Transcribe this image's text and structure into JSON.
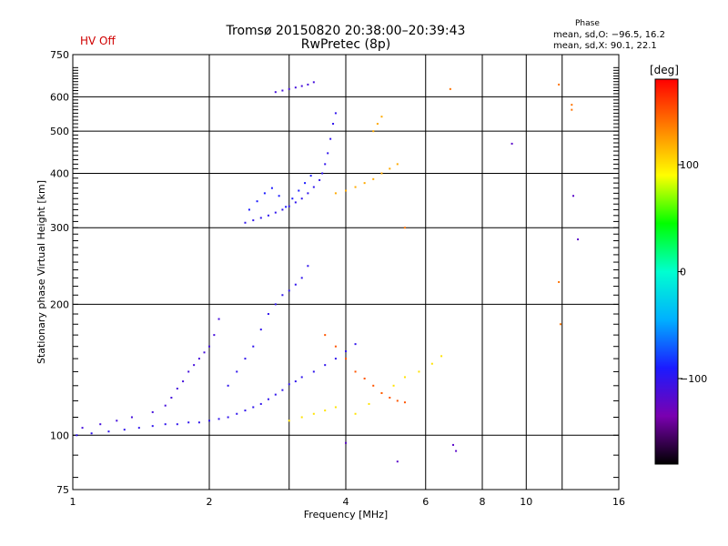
{
  "header": {
    "hv_status": "HV Off",
    "title_line1": "Tromsø 20150820 20:38:00–20:39:43",
    "title_line2": "RwPretec (8p)",
    "phase_heading": "Phase",
    "phase_o": "mean, sd,O: −96.5, 16.2",
    "phase_x": "mean, sd,X:  90.1, 22.1"
  },
  "colorbar": {
    "title": "[deg]",
    "ticks": [
      {
        "value": 100,
        "label": "100"
      },
      {
        "value": 0,
        "label": "0"
      },
      {
        "value": -100,
        "label": "−100"
      }
    ],
    "range": [
      -180,
      180
    ],
    "stops": [
      "#000000",
      "#7a00b0",
      "#1b1bff",
      "#00b0ff",
      "#00ffd0",
      "#00ff00",
      "#ffff00",
      "#ff8000",
      "#ff0000"
    ]
  },
  "chart_data": {
    "type": "scatter",
    "title": "Tromsø 20150820 20:38:00–20:39:43",
    "subtitle": "RwPretec (8p)",
    "xlabel": "Frequency [MHz]",
    "ylabel": "Stationary phase Virtual Height [km]",
    "xscale": "log",
    "yscale": "log",
    "xlim": [
      1,
      16
    ],
    "ylim": [
      75,
      750
    ],
    "xticks": [
      1,
      2,
      4,
      6,
      8,
      10,
      16
    ],
    "xtick_labels": [
      "1",
      "2",
      "4",
      "6",
      "8",
      "10",
      "16"
    ],
    "yticks": [
      75,
      100,
      200,
      300,
      400,
      500,
      600,
      750
    ],
    "ytick_labels": [
      "75",
      "100",
      "200",
      "300",
      "400",
      "500",
      "600",
      "750"
    ],
    "xgrid": [
      2,
      3,
      4,
      6,
      8,
      10,
      12
    ],
    "ygrid": [
      100,
      200,
      300,
      400,
      500,
      600
    ],
    "color_encodes": "phase [deg]",
    "series": [
      {
        "points": [
          [
            1.02,
            100
          ],
          [
            1.1,
            101
          ],
          [
            1.2,
            102
          ],
          [
            1.3,
            103
          ],
          [
            1.4,
            104
          ],
          [
            1.5,
            105
          ],
          [
            1.6,
            106
          ],
          [
            1.7,
            106
          ],
          [
            1.8,
            107
          ],
          [
            1.9,
            107
          ],
          [
            2.0,
            108
          ],
          [
            2.1,
            109
          ],
          [
            2.2,
            110
          ],
          [
            2.3,
            112
          ],
          [
            2.4,
            114
          ],
          [
            2.5,
            116
          ],
          [
            2.6,
            118
          ],
          [
            2.7,
            121
          ],
          [
            2.8,
            124
          ],
          [
            2.9,
            127
          ],
          [
            3.0,
            131
          ],
          [
            3.1,
            133
          ],
          [
            3.2,
            136
          ],
          [
            3.4,
            140
          ],
          [
            3.6,
            145
          ],
          [
            3.8,
            150
          ],
          [
            4.0,
            156
          ],
          [
            4.2,
            162
          ]
        ],
        "phase": -100
      },
      {
        "points": [
          [
            1.05,
            104
          ],
          [
            1.15,
            106
          ],
          [
            1.25,
            108
          ],
          [
            1.35,
            110
          ],
          [
            1.5,
            113
          ],
          [
            1.6,
            117
          ],
          [
            1.65,
            122
          ],
          [
            1.7,
            128
          ],
          [
            1.75,
            133
          ],
          [
            1.8,
            140
          ],
          [
            1.85,
            145
          ],
          [
            1.9,
            150
          ],
          [
            1.95,
            155
          ],
          [
            2.0,
            160
          ],
          [
            2.05,
            170
          ],
          [
            2.1,
            185
          ]
        ],
        "phase": -110
      },
      {
        "points": [
          [
            2.2,
            130
          ],
          [
            2.3,
            140
          ],
          [
            2.4,
            150
          ],
          [
            2.5,
            160
          ],
          [
            2.6,
            175
          ],
          [
            2.7,
            190
          ],
          [
            2.8,
            200
          ],
          [
            2.9,
            210
          ],
          [
            3.0,
            215
          ],
          [
            3.1,
            222
          ],
          [
            3.2,
            230
          ],
          [
            3.3,
            245
          ]
        ],
        "phase": -100
      },
      {
        "points": [
          [
            2.4,
            308
          ],
          [
            2.5,
            312
          ],
          [
            2.6,
            316
          ],
          [
            2.7,
            320
          ],
          [
            2.8,
            325
          ],
          [
            2.9,
            330
          ],
          [
            3.0,
            336
          ],
          [
            3.1,
            343
          ],
          [
            3.2,
            350
          ],
          [
            3.3,
            360
          ],
          [
            3.4,
            372
          ],
          [
            3.5,
            386
          ],
          [
            3.55,
            400
          ],
          [
            3.6,
            420
          ],
          [
            3.65,
            445
          ],
          [
            3.7,
            480
          ],
          [
            3.75,
            520
          ],
          [
            3.8,
            550
          ]
        ],
        "phase": -100
      },
      {
        "points": [
          [
            2.45,
            330
          ],
          [
            2.55,
            345
          ],
          [
            2.65,
            360
          ],
          [
            2.75,
            370
          ],
          [
            2.85,
            355
          ],
          [
            2.95,
            335
          ],
          [
            3.05,
            350
          ],
          [
            3.15,
            365
          ],
          [
            3.25,
            380
          ],
          [
            3.35,
            395
          ]
        ],
        "phase": -90
      },
      {
        "points": [
          [
            2.8,
            615
          ],
          [
            2.9,
            620
          ],
          [
            3.0,
            625
          ],
          [
            3.1,
            630
          ],
          [
            3.2,
            635
          ],
          [
            3.3,
            640
          ],
          [
            3.4,
            648
          ]
        ],
        "phase": -110
      },
      {
        "points": [
          [
            3.0,
            108
          ],
          [
            3.2,
            110
          ],
          [
            3.4,
            112
          ],
          [
            3.6,
            114
          ],
          [
            3.8,
            116
          ],
          [
            4.2,
            112
          ],
          [
            4.5,
            118
          ],
          [
            4.8,
            125
          ],
          [
            5.1,
            130
          ],
          [
            5.4,
            136
          ],
          [
            5.8,
            140
          ],
          [
            6.2,
            146
          ],
          [
            6.5,
            152
          ]
        ],
        "phase": 100
      },
      {
        "points": [
          [
            3.8,
            360
          ],
          [
            4.0,
            365
          ],
          [
            4.2,
            372
          ],
          [
            4.4,
            380
          ],
          [
            4.6,
            388
          ],
          [
            4.8,
            400
          ],
          [
            5.0,
            410
          ],
          [
            5.2,
            420
          ],
          [
            4.6,
            500
          ],
          [
            4.7,
            520
          ],
          [
            4.8,
            540
          ]
        ],
        "phase": 120
      },
      {
        "points": [
          [
            3.6,
            170
          ],
          [
            3.8,
            160
          ],
          [
            4.0,
            150
          ],
          [
            4.2,
            140
          ],
          [
            4.4,
            135
          ],
          [
            4.6,
            130
          ],
          [
            4.8,
            125
          ],
          [
            5.0,
            122
          ],
          [
            5.2,
            120
          ],
          [
            5.4,
            119
          ]
        ],
        "phase": 150
      },
      {
        "points": [
          [
            5.4,
            300
          ],
          [
            6.8,
            625
          ],
          [
            11.8,
            640
          ],
          [
            12.6,
            575
          ],
          [
            12.6,
            560
          ],
          [
            11.9,
            180
          ],
          [
            11.8,
            225
          ]
        ],
        "phase": 140
      },
      {
        "points": [
          [
            9.3,
            468
          ],
          [
            12.7,
            355
          ],
          [
            13.0,
            282
          ],
          [
            7.0,
            92
          ],
          [
            6.9,
            95
          ],
          [
            5.2,
            87
          ],
          [
            4.0,
            96
          ]
        ],
        "phase": -120
      }
    ]
  }
}
